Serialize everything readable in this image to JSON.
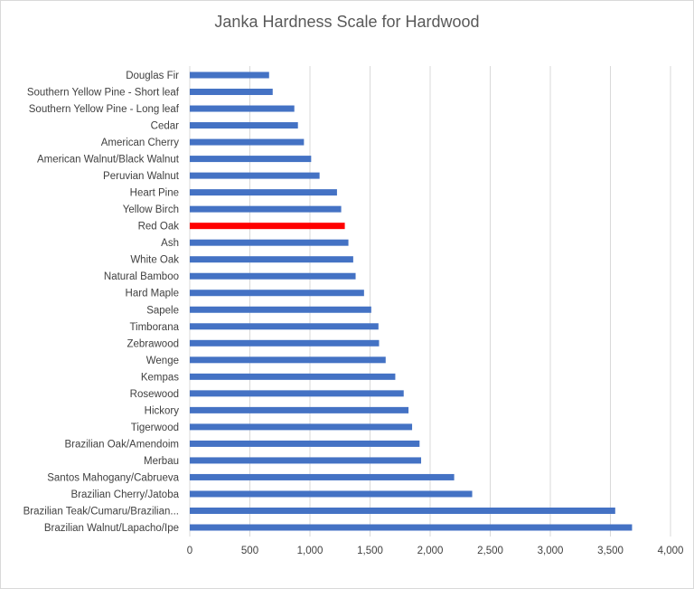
{
  "chart_data": {
    "type": "bar",
    "orientation": "horizontal",
    "title": "Janka Hardness Scale for Hardwood",
    "xlabel": "",
    "ylabel": "",
    "xlim": [
      0,
      4000
    ],
    "xticks": [
      0,
      500,
      1000,
      1500,
      2000,
      2500,
      3000,
      3500,
      4000
    ],
    "xtick_labels": [
      "0",
      "500",
      "1,000",
      "1,500",
      "2,000",
      "2,500",
      "3,000",
      "3,500",
      "4,000"
    ],
    "grid": "vertical",
    "legend": "none",
    "colors": {
      "default": "#4472c4",
      "highlight": "#ff0000"
    },
    "highlight": "Red Oak",
    "categories": [
      "Douglas Fir",
      "Southern Yellow Pine - Short leaf",
      "Southern Yellow Pine - Long leaf",
      "Cedar",
      "American Cherry",
      "American Walnut/Black Walnut",
      "Peruvian Walnut",
      "Heart Pine",
      "Yellow Birch",
      "Red Oak",
      "Ash",
      "White Oak",
      "Natural Bamboo",
      "Hard Maple",
      "Sapele",
      "Timborana",
      "Zebrawood",
      "Wenge",
      "Kempas",
      "Rosewood",
      "Hickory",
      "Tigerwood",
      "Brazilian Oak/Amendoim",
      "Merbau",
      "Santos Mahogany/Cabrueva",
      "Brazilian Cherry/Jatoba",
      "Brazilian Teak/Cumaru/Brazilian...",
      "Brazilian Walnut/Lapacho/Ipe"
    ],
    "values": [
      660,
      690,
      870,
      900,
      950,
      1010,
      1080,
      1225,
      1260,
      1290,
      1320,
      1360,
      1380,
      1450,
      1510,
      1570,
      1575,
      1630,
      1710,
      1780,
      1820,
      1850,
      1912,
      1925,
      2200,
      2350,
      3540,
      3680
    ]
  }
}
